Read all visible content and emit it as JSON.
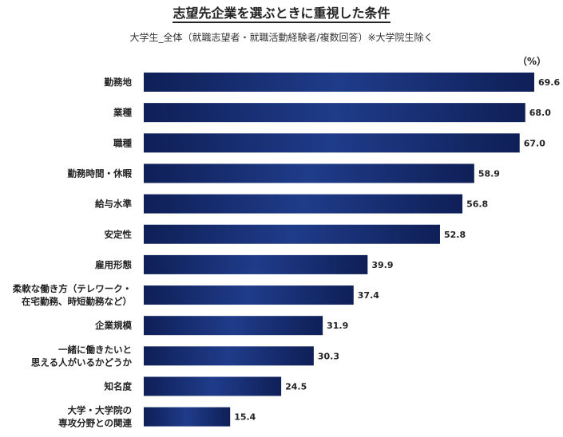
{
  "title": "志望先企業を選ぶときに重視した条件",
  "subtitle": "大学生_全体（就職志望者・就職活動経験者/複数回答）※大学院生除く",
  "unit": "（%）",
  "colors": {
    "bar_dark": "#0f1f57",
    "bar_mid": "#1f3c8a"
  },
  "chart_data": {
    "type": "bar",
    "orientation": "horizontal",
    "title": "志望先企業を選ぶときに重視した条件",
    "subtitle": "大学生_全体（就職志望者・就職活動経験者/複数回答）※大学院生除く",
    "unit": "（%）",
    "categories": [
      [
        "勤務地"
      ],
      [
        "業種"
      ],
      [
        "職種"
      ],
      [
        "勤務時間・休暇"
      ],
      [
        "給与水準"
      ],
      [
        "安定性"
      ],
      [
        "雇用形態"
      ],
      [
        "柔軟な働き方（テレワーク・",
        "在宅勤務、時短勤務など）"
      ],
      [
        "企業規模"
      ],
      [
        "一緒に働きたいと",
        "思える人がいるかどうか"
      ],
      [
        "知名度"
      ],
      [
        "大学・大学院の",
        "専攻分野との関連"
      ]
    ],
    "values": [
      69.6,
      68.0,
      67.0,
      58.9,
      56.8,
      52.8,
      39.9,
      37.4,
      31.9,
      30.3,
      24.5,
      15.4
    ],
    "value_labels": [
      "69.6",
      "68.0",
      "67.0",
      "58.9",
      "56.8",
      "52.8",
      "39.9",
      "37.4",
      "31.9",
      "30.3",
      "24.5",
      "15.4"
    ],
    "xlim": [
      0,
      70
    ],
    "grid": false,
    "legend": "none"
  }
}
